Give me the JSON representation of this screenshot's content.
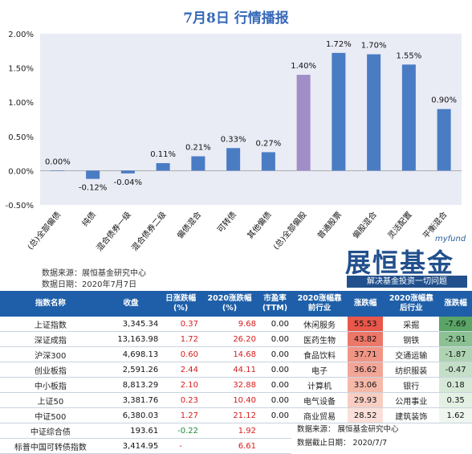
{
  "title": "7月8日 行情播报",
  "chart_data": {
    "type": "bar",
    "categories": [
      "(总)全部偏债",
      "纯债",
      "混合债券一级",
      "混合债券二级",
      "偏债混合",
      "可转债",
      "其他偏债",
      "(总)全部偏股",
      "普通股票",
      "偏股混合",
      "灵活配置",
      "平衡混合"
    ],
    "values": [
      0.0,
      -0.12,
      -0.04,
      0.11,
      0.21,
      0.33,
      0.27,
      1.4,
      1.72,
      1.7,
      1.55,
      0.9
    ],
    "value_labels": [
      "0.00%",
      "-0.12%",
      "-0.04%",
      "0.11%",
      "0.21%",
      "0.33%",
      "0.27%",
      "1.40%",
      "1.72%",
      "1.70%",
      "1.55%",
      "0.90%"
    ],
    "highlight_index": 7,
    "ylim": [
      -0.5,
      2.0
    ],
    "yticks": [
      "-0.50%",
      "0.00%",
      "0.50%",
      "1.00%",
      "1.50%",
      "2.00%"
    ],
    "ytick_values": [
      -0.5,
      0,
      0.5,
      1.0,
      1.5,
      2.0
    ],
    "bar_color": "#4a7cc4",
    "highlight_color": "#a08ec6",
    "grid": false
  },
  "source_note": "数据来源：展恒基金研究中心",
  "date_note": "数据日期：2020年7月7日",
  "brand": {
    "top": "myfund",
    "name": "展恒基金",
    "slogan": "解决基金投资一切问题"
  },
  "index_table": {
    "headers": [
      "指数名称",
      "收盘",
      "日涨跌幅\n(%)",
      "2020涨跌幅\n(%)",
      "市盈率\n(TTM)"
    ],
    "rows": [
      [
        "上证指数",
        "3,345.34",
        "0.37",
        "9.68",
        "0.00"
      ],
      [
        "深证成指",
        "13,163.98",
        "1.72",
        "26.20",
        "0.00"
      ],
      [
        "沪深300",
        "4,698.13",
        "0.60",
        "14.68",
        "0.00"
      ],
      [
        "创业板指",
        "2,591.26",
        "2.44",
        "44.11",
        "0.00"
      ],
      [
        "中小板指",
        "8,813.29",
        "2.10",
        "32.88",
        "0.00"
      ],
      [
        "上证50",
        "3,381.76",
        "0.23",
        "10.40",
        "0.00"
      ],
      [
        "中证500",
        "6,380.03",
        "1.27",
        "21.12",
        "0.00"
      ],
      [
        "中证综合债",
        "193.61",
        "-0.22",
        "1.92",
        ""
      ],
      [
        "标普中国可转债指数",
        "3,414.95",
        "-",
        "6.61",
        ""
      ]
    ]
  },
  "industry_table": {
    "headers": [
      "2020涨幅靠\n前行业",
      "涨跌幅",
      "2020涨幅靠\n后行业",
      "涨跌幅"
    ],
    "rows": [
      [
        "休闲服务",
        "55.53",
        "采掘",
        "-7.69"
      ],
      [
        "医药生物",
        "43.82",
        "钢铁",
        "-2.91"
      ],
      [
        "食品饮料",
        "37.71",
        "交通运输",
        "-1.87"
      ],
      [
        "电子",
        "36.62",
        "纺织服装",
        "-0.47"
      ],
      [
        "计算机",
        "33.06",
        "银行",
        "0.18"
      ],
      [
        "电气设备",
        "29.93",
        "公用事业",
        "0.35"
      ],
      [
        "商业贸易",
        "28.52",
        "建筑装饰",
        "1.62"
      ]
    ],
    "heat_colors": [
      "#e8574a",
      "#ec7869",
      "#f09585",
      "#f2a697",
      "#f5b8a9",
      "#f8cdc2",
      "#fbe0d9"
    ],
    "cool_colors": [
      "#5aa466",
      "#8cc193",
      "#aed3b2",
      "#c4dfc7",
      "#d6e9d8",
      "#e3f0e4",
      "#eef6ef"
    ]
  },
  "footer": {
    "source": "数据来源：  展恒基金研究中心",
    "date": "数据截止日期：  2020/7/7"
  }
}
